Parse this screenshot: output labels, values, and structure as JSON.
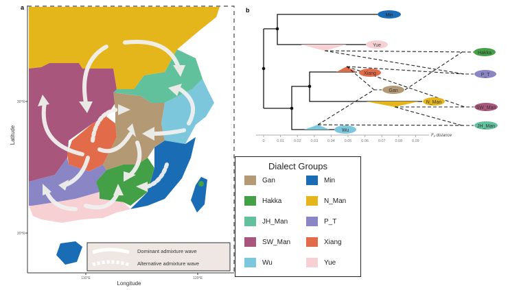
{
  "panel_a": {
    "label": "a",
    "xlabel": "Longitude",
    "ylabel": "Latitude",
    "xticks": [
      "110°E",
      "120°E"
    ],
    "yticks": [
      "30°N",
      "20°N"
    ],
    "legend": {
      "dominant": "Dominant admixture wave",
      "alternative": "Alternative admixture wave"
    }
  },
  "panel_b": {
    "label": "b",
    "axis_label": "F₂ distance",
    "ticks": [
      "0",
      "0.01",
      "0.02",
      "0.03",
      "0.04",
      "0.05",
      "0.06",
      "0.07",
      "0.08",
      "0.09"
    ],
    "tips": [
      "Min",
      "Yue",
      "Xiang",
      "N_Man",
      "Wu",
      "Gan",
      "Hakka",
      "P_T",
      "SW_Man",
      "JH_Man"
    ]
  },
  "legend": {
    "title": "Dialect Groups",
    "items": [
      {
        "name": "Gan",
        "color": "#b39a74"
      },
      {
        "name": "Min",
        "color": "#1a6db5"
      },
      {
        "name": "Hakka",
        "color": "#44a047"
      },
      {
        "name": "N_Man",
        "color": "#e5b61c"
      },
      {
        "name": "JH_Man",
        "color": "#62c19d"
      },
      {
        "name": "P_T",
        "color": "#8a86c6"
      },
      {
        "name": "SW_Man",
        "color": "#a8567b"
      },
      {
        "name": "Xiang",
        "color": "#e26b4a"
      },
      {
        "name": "Wu",
        "color": "#7dc7dd"
      },
      {
        "name": "Yue",
        "color": "#f7d0d4"
      }
    ]
  }
}
